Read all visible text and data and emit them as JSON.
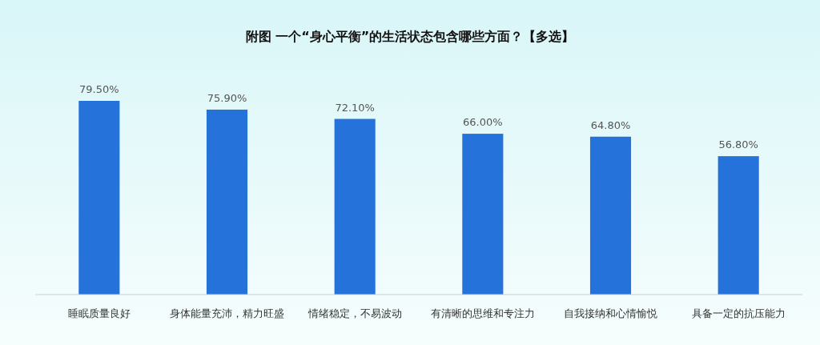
{
  "chart_data": {
    "type": "bar",
    "title": "附图 一个“身心平衡”的生活状态包含哪些方面？【多选】",
    "categories": [
      "睡眠质量良好",
      "身体能量充沛，精力旺盛",
      "情绪稳定，不易波动",
      "有清晰的思维和专注力",
      "自我接纳和心情愉悦",
      "具备一定的抗压能力"
    ],
    "values": [
      79.5,
      75.9,
      72.1,
      66.0,
      64.8,
      56.8
    ],
    "value_labels": [
      "79.50%",
      "75.90%",
      "72.10%",
      "66.00%",
      "64.80%",
      "56.80%"
    ],
    "color": "#2672db"
  }
}
